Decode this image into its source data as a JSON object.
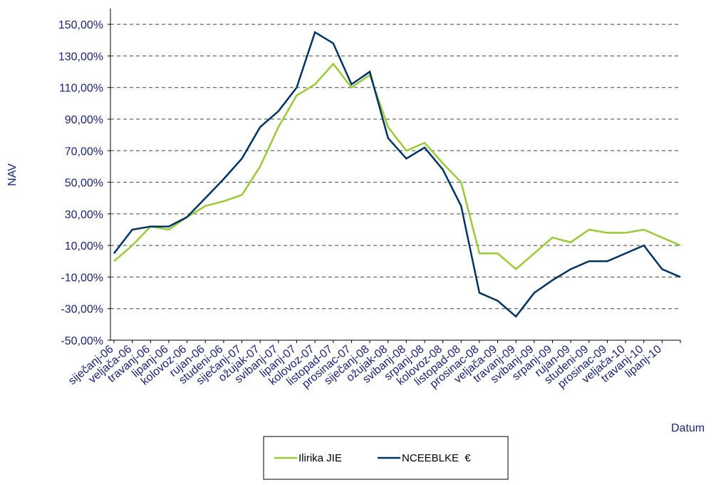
{
  "chart_data": {
    "type": "line",
    "categories": [
      "siječanj-06",
      "veljača-06",
      "travanj-06",
      "lipanj-06",
      "kolovoz-06",
      "rujan-06",
      "studeni-06",
      "siječanj-07",
      "ožujak-07",
      "svibanj-07",
      "lipanj-07",
      "kolovoz-07",
      "listopad-07",
      "prosinac-07",
      "siječanj-08",
      "ožujak-08",
      "svibanj-08",
      "srpanj-08",
      "kolovoz-08",
      "listopad-08",
      "prosinac-08",
      "veljača-09",
      "travanj-09",
      "svibanj-09",
      "srpanj-09",
      "rujan-09",
      "studeni-09",
      "prosinac-09",
      "veljača-10",
      "travanj-10",
      "lipanj-10",
      null
    ],
    "series": [
      {
        "name": "Ilirika JIE",
        "color": "#99cc33",
        "values": [
          0,
          10,
          22,
          20,
          28,
          35,
          38,
          42,
          60,
          85,
          105,
          112,
          125,
          110,
          118,
          85,
          70,
          75,
          62,
          50,
          5,
          5,
          -5,
          5,
          15,
          12,
          20,
          18,
          18,
          20,
          15,
          10
        ]
      },
      {
        "name": "NCEEBLKE  €",
        "color": "#003366",
        "values": [
          5,
          20,
          22,
          22,
          28,
          40,
          52,
          65,
          85,
          95,
          110,
          145,
          138,
          112,
          120,
          78,
          65,
          72,
          58,
          35,
          -20,
          -25,
          -35,
          -20,
          -12,
          -5,
          0,
          0,
          5,
          10,
          -5,
          -10
        ]
      }
    ],
    "ylim": [
      -50,
      160
    ],
    "yticks": [
      {
        "value": -50,
        "label": "-50,00%"
      },
      {
        "value": -30,
        "label": "-30,00%"
      },
      {
        "value": -10,
        "label": "-10,00%"
      },
      {
        "value": 10,
        "label": "10,00%"
      },
      {
        "value": 30,
        "label": "30,00%"
      },
      {
        "value": 50,
        "label": "50,00%"
      },
      {
        "value": 70,
        "label": "70,00%"
      },
      {
        "value": 90,
        "label": "90,00%"
      },
      {
        "value": 110,
        "label": "110,00%"
      },
      {
        "value": 130,
        "label": "130,00%"
      },
      {
        "value": 150,
        "label": "150,00%"
      }
    ],
    "ylabel": "NAV",
    "xlabel": "Datum",
    "grid": true,
    "legend": "bottom"
  }
}
